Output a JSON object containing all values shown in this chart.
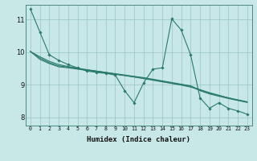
{
  "xlabel": "Humidex (Indice chaleur)",
  "background_color": "#c8e8e8",
  "plot_bg_color": "#c8e8e8",
  "line_color": "#2a7a6a",
  "grid_color": "#a0caca",
  "xlim": [
    -0.5,
    23.5
  ],
  "ylim": [
    7.75,
    11.45
  ],
  "yticks": [
    8,
    9,
    10,
    11
  ],
  "xticks": [
    0,
    1,
    2,
    3,
    4,
    5,
    6,
    7,
    8,
    9,
    10,
    11,
    12,
    13,
    14,
    15,
    16,
    17,
    18,
    19,
    20,
    21,
    22,
    23
  ],
  "series": [
    [
      11.32,
      10.62,
      9.92,
      9.75,
      9.62,
      9.52,
      9.42,
      9.38,
      9.35,
      9.3,
      8.82,
      8.45,
      9.05,
      9.48,
      9.52,
      11.02,
      10.68,
      9.92,
      8.6,
      8.28,
      8.45,
      8.28,
      8.2,
      8.1
    ],
    [
      10.02,
      9.78,
      9.65,
      9.55,
      9.52,
      9.48,
      9.44,
      9.4,
      9.36,
      9.32,
      9.28,
      9.24,
      9.2,
      9.16,
      9.1,
      9.05,
      9.0,
      8.95,
      8.82,
      8.72,
      8.65,
      8.58,
      8.52,
      8.46
    ],
    [
      10.02,
      9.82,
      9.68,
      9.58,
      9.54,
      9.5,
      9.46,
      9.42,
      9.38,
      9.34,
      9.3,
      9.26,
      9.22,
      9.17,
      9.12,
      9.07,
      9.02,
      8.97,
      8.84,
      8.74,
      8.67,
      8.6,
      8.53,
      8.47
    ],
    [
      10.02,
      9.86,
      9.72,
      9.62,
      9.56,
      9.51,
      9.46,
      9.42,
      9.38,
      9.33,
      9.29,
      9.24,
      9.19,
      9.14,
      9.09,
      9.04,
      8.99,
      8.93,
      8.85,
      8.76,
      8.68,
      8.6,
      8.54,
      8.48
    ]
  ]
}
